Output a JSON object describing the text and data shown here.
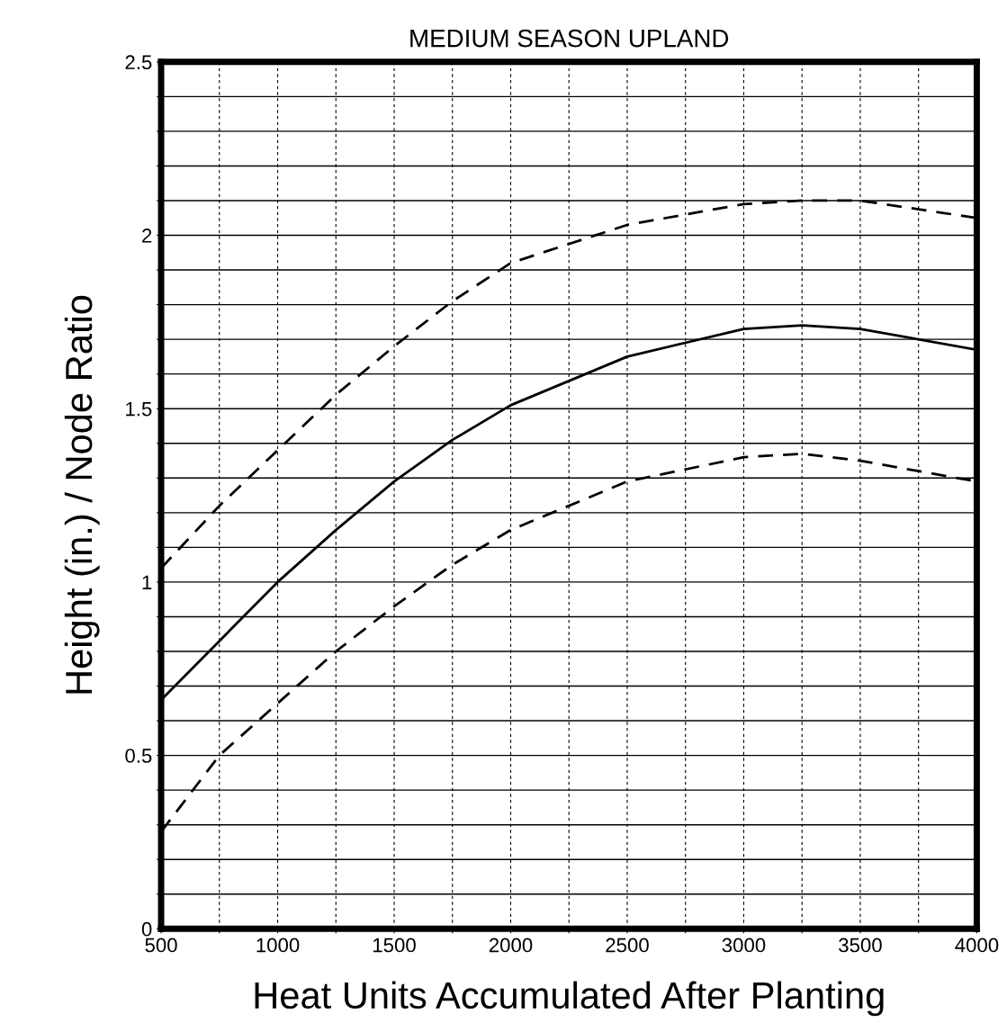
{
  "chart_data": {
    "type": "line",
    "title": "MEDIUM SEASON UPLAND",
    "xlabel": "Heat Units Accumulated After Planting",
    "ylabel": "Height (in.) / Node Ratio",
    "xlim": [
      500,
      4000
    ],
    "ylim": [
      0,
      2.5
    ],
    "xticks": [
      500,
      {
        "value": 750,
        "label": null
      },
      1000,
      {
        "value": 1250,
        "label": null
      },
      1500,
      {
        "value": 1750,
        "label": null
      },
      2000,
      {
        "value": 2250,
        "label": null
      },
      2500,
      {
        "value": 2750,
        "label": null
      },
      3000,
      {
        "value": 3250,
        "label": null
      },
      3500,
      {
        "value": 3750,
        "label": null
      },
      4000
    ],
    "yticks": [
      0,
      {
        "value": 0.1,
        "label": null
      },
      {
        "value": 0.2,
        "label": null
      },
      {
        "value": 0.3,
        "label": null
      },
      {
        "value": 0.4,
        "label": null
      },
      0.5,
      {
        "value": 0.6,
        "label": null
      },
      {
        "value": 0.7,
        "label": null
      },
      {
        "value": 0.8,
        "label": null
      },
      {
        "value": 0.9,
        "label": null
      },
      1,
      {
        "value": 1.1,
        "label": null
      },
      {
        "value": 1.2,
        "label": null
      },
      {
        "value": 1.3,
        "label": null
      },
      {
        "value": 1.4,
        "label": null
      },
      1.5,
      {
        "value": 1.6,
        "label": null
      },
      {
        "value": 1.7,
        "label": null
      },
      {
        "value": 1.8,
        "label": null
      },
      {
        "value": 1.9,
        "label": null
      },
      2,
      {
        "value": 2.1,
        "label": null
      },
      {
        "value": 2.2,
        "label": null
      },
      {
        "value": 2.3,
        "label": null
      },
      {
        "value": 2.4,
        "label": null
      },
      2.5
    ],
    "grid": true,
    "marker": "none",
    "x": [
      500,
      750,
      1000,
      1250,
      1500,
      1750,
      2000,
      2500,
      3000,
      3250,
      3500,
      4000
    ],
    "series": [
      {
        "color": "#000000",
        "line_style": "dashed",
        "values": [
          1.04,
          1.22,
          1.38,
          1.54,
          1.68,
          1.81,
          1.92,
          2.03,
          2.09,
          2.1,
          2.1,
          2.05
        ]
      },
      {
        "color": "#000000",
        "line_style": "solid",
        "values": [
          0.66,
          0.83,
          1.0,
          1.15,
          1.29,
          1.41,
          1.51,
          1.65,
          1.73,
          1.74,
          1.73,
          1.67
        ]
      },
      {
        "color": "#000000",
        "line_style": "dashed",
        "values": [
          0.28,
          0.5,
          0.65,
          0.8,
          0.93,
          1.05,
          1.15,
          1.29,
          1.36,
          1.37,
          1.35,
          1.29
        ]
      }
    ]
  }
}
